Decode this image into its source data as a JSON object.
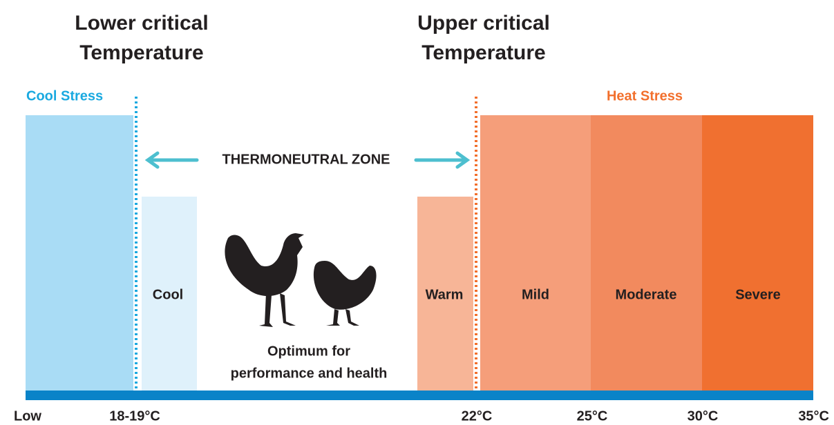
{
  "header": {
    "lower": [
      "Lower critical",
      "Temperature"
    ],
    "upper": [
      "Upper critical",
      "Temperature"
    ]
  },
  "stress": {
    "cool": "Cool Stress",
    "heat": "Heat Stress"
  },
  "thermoneutral": "THERMONEUTRAL ZONE",
  "zones": {
    "cool": "Cool",
    "warm": "Warm",
    "mild": "Mild",
    "moderate": "Moderate",
    "severe": "Severe"
  },
  "optimum": [
    "Optimum for",
    "performance and health"
  ],
  "scale": [
    "Low",
    "18-19°C",
    "22°C",
    "25°C",
    "30°C",
    "35°C"
  ]
}
